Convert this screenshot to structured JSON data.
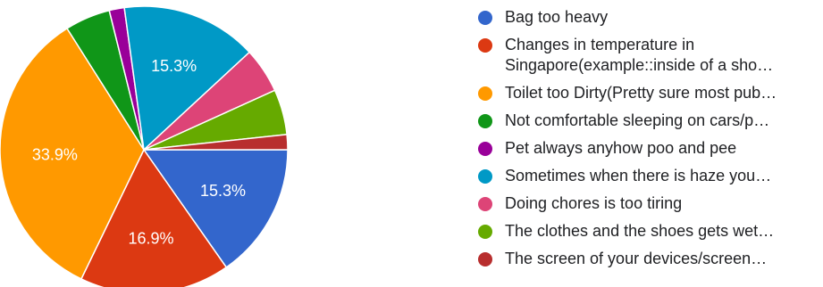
{
  "chart_data": {
    "type": "pie",
    "categories": [
      "Bag too heavy",
      "Changes in temperature in\nSingapore(example::inside of a sho…",
      "Toilet too Dirty(Pretty sure most pub…",
      "Not comfortable sleeping on cars/p…",
      "Pet always anyhow poo and pee",
      "Sometimes when there is haze you…",
      "Doing chores is too tiring",
      "The clothes and the shoes gets wet…",
      "The screen of your devices/screen…"
    ],
    "values": [
      15.3,
      16.9,
      33.9,
      5.1,
      1.7,
      15.3,
      5.1,
      5.1,
      1.7
    ],
    "data_labels": [
      "15.3%",
      "16.9%",
      "33.9%",
      "",
      "",
      "15.3%",
      "",
      "",
      ""
    ],
    "colors": [
      "#3366cc",
      "#dc3912",
      "#ff9900",
      "#109618",
      "#990099",
      "#0099c6",
      "#dd4477",
      "#66aa00",
      "#b82e2e"
    ],
    "start_angle_deg": 90,
    "direction": "clockwise",
    "legend_position": "right"
  }
}
